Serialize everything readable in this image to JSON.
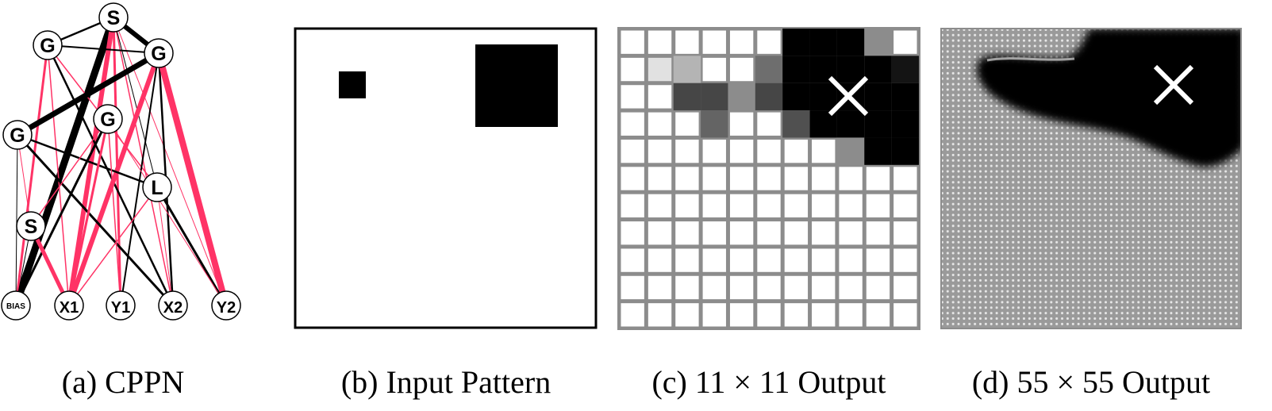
{
  "captions": {
    "a": "(a) CPPN",
    "b": "(b) Input Pattern",
    "c": "(c) 11 × 11 Output",
    "d": "(d) 55 × 55 Output"
  },
  "colors": {
    "positive_weight": "#ff3366",
    "negative_weight": "#000000",
    "node_fill": "#ffffff",
    "grid_line": "#8c8c8c",
    "fine_grid": "#9a9a9a"
  },
  "cppn": {
    "nodes": [
      {
        "id": "S_top",
        "label": "S"
      },
      {
        "id": "G1",
        "label": "G"
      },
      {
        "id": "G2",
        "label": "G"
      },
      {
        "id": "G3",
        "label": "G"
      },
      {
        "id": "G4",
        "label": "G"
      },
      {
        "id": "L",
        "label": "L"
      },
      {
        "id": "S_low",
        "label": "S"
      },
      {
        "id": "BIAS",
        "label": "BIAS"
      },
      {
        "id": "X1",
        "label": "X1"
      },
      {
        "id": "Y1",
        "label": "Y1"
      },
      {
        "id": "X2",
        "label": "X2"
      },
      {
        "id": "Y2",
        "label": "Y2"
      }
    ]
  },
  "output_11": {
    "size": 11,
    "marker": "×",
    "rows": [
      [
        255,
        255,
        255,
        255,
        255,
        255,
        0,
        0,
        0,
        140,
        255
      ],
      [
        255,
        225,
        180,
        255,
        255,
        110,
        0,
        0,
        0,
        0,
        20
      ],
      [
        255,
        255,
        70,
        70,
        140,
        70,
        0,
        0,
        0,
        0,
        0
      ],
      [
        255,
        255,
        255,
        100,
        255,
        255,
        80,
        0,
        0,
        0,
        0
      ],
      [
        255,
        255,
        255,
        255,
        255,
        255,
        255,
        255,
        140,
        0,
        0
      ],
      [
        255,
        255,
        255,
        255,
        255,
        255,
        255,
        255,
        255,
        255,
        255
      ],
      [
        255,
        255,
        255,
        255,
        255,
        255,
        255,
        255,
        255,
        255,
        255
      ],
      [
        255,
        255,
        255,
        255,
        255,
        255,
        255,
        255,
        255,
        255,
        255
      ],
      [
        255,
        255,
        255,
        255,
        255,
        255,
        255,
        255,
        255,
        255,
        255
      ],
      [
        255,
        255,
        255,
        255,
        255,
        255,
        255,
        255,
        255,
        255,
        255
      ],
      [
        255,
        255,
        255,
        255,
        255,
        255,
        255,
        255,
        255,
        255,
        255
      ]
    ]
  },
  "output_55": {
    "size": 55,
    "marker": "×"
  }
}
